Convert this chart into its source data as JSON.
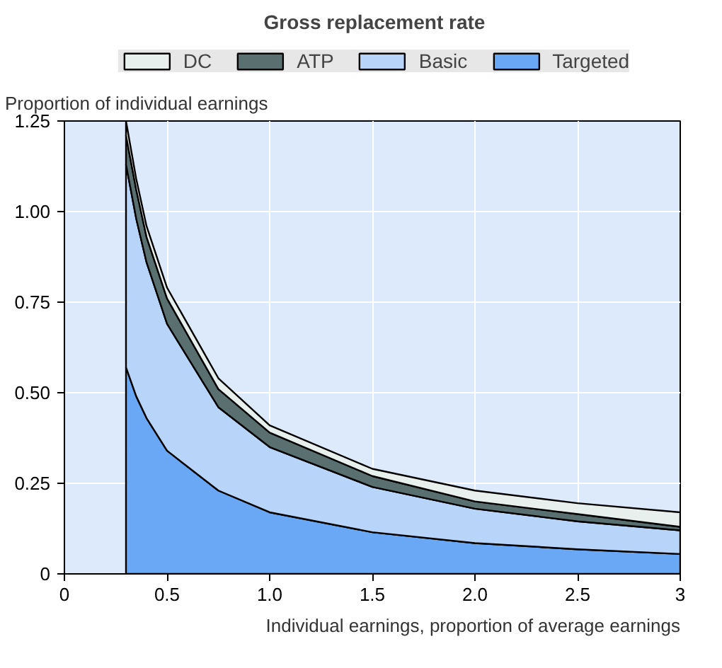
{
  "chart_data": {
    "type": "area",
    "stacked": true,
    "title": "Gross replacement rate",
    "ylabel": "Proportion of individual earnings",
    "xlabel": "Individual earnings, proportion of average earnings",
    "x": [
      0.3,
      0.35,
      0.4,
      0.5,
      0.75,
      1,
      1.5,
      2,
      2.5,
      3
    ],
    "series": [
      {
        "name": "Targeted",
        "color": "#6aa8f5",
        "values": [
          0.57,
          0.49,
          0.43,
          0.34,
          0.23,
          0.17,
          0.115,
          0.085,
          0.068,
          0.055
        ]
      },
      {
        "name": "Basic",
        "color": "#b8d4f8",
        "values": [
          0.56,
          0.49,
          0.43,
          0.35,
          0.23,
          0.18,
          0.125,
          0.095,
          0.077,
          0.065
        ]
      },
      {
        "name": "ATP",
        "color": "#5a7070",
        "values": [
          0.08,
          0.08,
          0.07,
          0.07,
          0.05,
          0.04,
          0.03,
          0.02,
          0.02,
          0.01
        ]
      },
      {
        "name": "DC",
        "color": "#e8f0ee",
        "values": [
          0.04,
          0.03,
          0.03,
          0.03,
          0.03,
          0.02,
          0.02,
          0.03,
          0.03,
          0.04
        ]
      }
    ],
    "xlim": [
      0,
      3
    ],
    "ylim": [
      0,
      1.25
    ],
    "xticks": [
      0,
      0.5,
      {
        "value": 1,
        "label": "1.0"
      },
      1.5,
      {
        "value": 2,
        "label": "2.0"
      },
      2.5,
      3
    ],
    "yticks": [
      0,
      0.25,
      {
        "value": 0.5,
        "label": "0.50"
      },
      0.75,
      {
        "value": 1,
        "label": "1.00"
      },
      1.25
    ],
    "grid": true,
    "legend": "top"
  }
}
